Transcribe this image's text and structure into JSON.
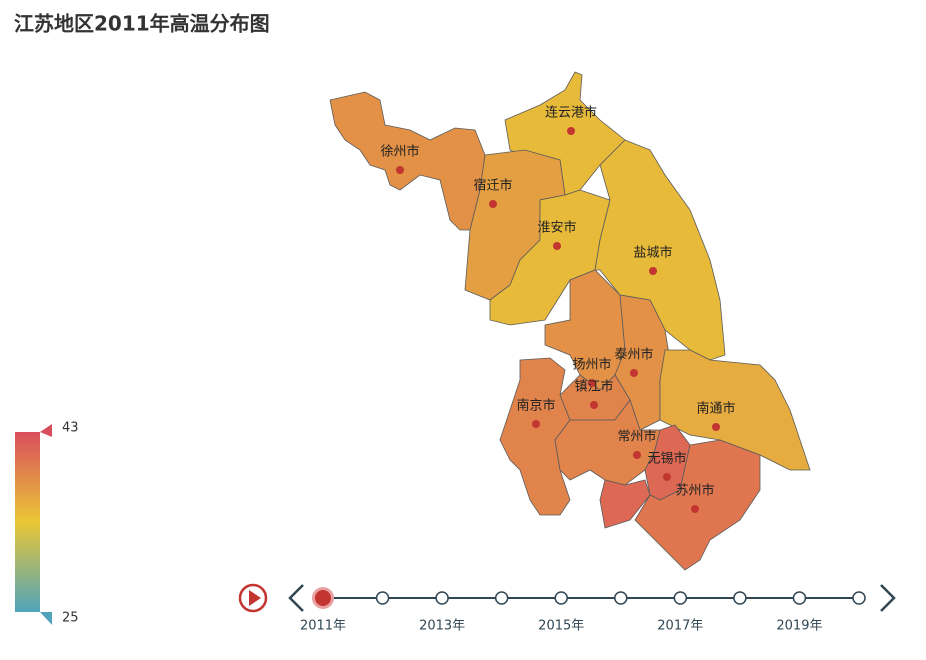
{
  "chart_data": {
    "type": "map",
    "title": "江苏地区2011年高温分布图",
    "regions": [
      {
        "name": "连云港市",
        "value": 35
      },
      {
        "name": "徐州市",
        "value": 38
      },
      {
        "name": "宿迁市",
        "value": 37
      },
      {
        "name": "淮安市",
        "value": 35
      },
      {
        "name": "盐城市",
        "value": 35
      },
      {
        "name": "扬州市",
        "value": 38
      },
      {
        "name": "泰州市",
        "value": 38
      },
      {
        "name": "南通市",
        "value": 36
      },
      {
        "name": "南京市",
        "value": 39
      },
      {
        "name": "镇江市",
        "value": 39
      },
      {
        "name": "常州市",
        "value": 39
      },
      {
        "name": "无锡市",
        "value": 41
      },
      {
        "name": "苏州市",
        "value": 40
      }
    ],
    "visual_map": {
      "min": 25,
      "max": 43,
      "colors": [
        "#50a3ba",
        "#eac736",
        "#d94e5d"
      ]
    },
    "timeline": {
      "labels": [
        "2011年",
        null,
        "2013年",
        null,
        "2015年",
        null,
        "2017年",
        null,
        "2019年",
        null
      ]
    }
  }
}
